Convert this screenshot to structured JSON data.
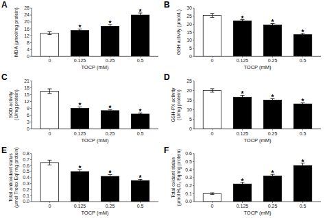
{
  "chart_data": [
    {
      "type": "bar",
      "title": "A",
      "ylabel": "MDA (μmol/mg protein)",
      "xlabel": "TOCP (mM)",
      "categories": [
        "0",
        "0.125",
        "0.25",
        "0.5"
      ],
      "values": [
        13.5,
        15.0,
        17.5,
        24.0
      ],
      "errors": [
        0.8,
        0.9,
        1.0,
        1.2
      ],
      "colors": [
        "white",
        "black",
        "black",
        "black"
      ],
      "annotations": [
        null,
        "*",
        "*",
        "*"
      ],
      "ylim": [
        0,
        28
      ],
      "yticks": [
        0,
        4,
        8,
        12,
        16,
        20,
        24,
        28
      ],
      "grid": false
    },
    {
      "type": "bar",
      "title": "B",
      "ylabel": "GSH activity (μmol/L)",
      "xlabel": "TOCP (mM)",
      "categories": [
        "0",
        "0.125",
        "0.25",
        "0.5"
      ],
      "values": [
        25.5,
        22.0,
        19.5,
        13.5
      ],
      "errors": [
        1.2,
        0.9,
        0.9,
        0.8
      ],
      "colors": [
        "white",
        "black",
        "black",
        "black"
      ],
      "annotations": [
        null,
        "*",
        "*",
        "*"
      ],
      "ylim": [
        0,
        30
      ],
      "yticks": [
        0,
        5,
        10,
        15,
        20,
        25,
        30
      ],
      "grid": false
    },
    {
      "type": "bar",
      "title": "C",
      "ylabel": "SOD activity\n(U/mg protein)",
      "xlabel": "TOCP (mM)",
      "categories": [
        "0",
        "0.125",
        "0.25",
        "0.5"
      ],
      "values": [
        16.5,
        9.0,
        8.0,
        6.5
      ],
      "errors": [
        1.0,
        0.6,
        0.5,
        0.5
      ],
      "colors": [
        "white",
        "black",
        "black",
        "black"
      ],
      "annotations": [
        null,
        "*",
        "*",
        "*"
      ],
      "ylim": [
        0,
        21
      ],
      "yticks": [
        0,
        3,
        6,
        9,
        12,
        15,
        18,
        21
      ],
      "grid": false
    },
    {
      "type": "bar",
      "title": "D",
      "ylabel": "GSH-PX activity\n(U/mg protein)",
      "xlabel": "TOCP (mM)",
      "categories": [
        "0",
        "0.125",
        "0.25",
        "0.5"
      ],
      "values": [
        20.0,
        16.5,
        15.0,
        13.0
      ],
      "errors": [
        0.9,
        1.0,
        0.7,
        0.6
      ],
      "colors": [
        "white",
        "black",
        "black",
        "black"
      ],
      "annotations": [
        null,
        "*",
        "*",
        "*"
      ],
      "ylim": [
        0,
        25
      ],
      "yticks": [
        0,
        5,
        10,
        15,
        20,
        25
      ],
      "grid": false
    },
    {
      "type": "bar",
      "title": "E",
      "ylabel": "Total antioxidant status\n(μmol Trolox Eq/ mg protein)",
      "xlabel": "TOCP (mM)",
      "categories": [
        "0",
        "0.125",
        "0.25",
        "0.5"
      ],
      "values": [
        0.65,
        0.5,
        0.42,
        0.35
      ],
      "errors": [
        0.04,
        0.03,
        0.03,
        0.02
      ],
      "colors": [
        "white",
        "black",
        "black",
        "black"
      ],
      "annotations": [
        null,
        "*",
        "*",
        "*"
      ],
      "ylim": [
        0,
        0.8
      ],
      "yticks": [
        {
          "value": 0,
          "label": "0.0"
        },
        0.1,
        0.2,
        0.3,
        0.4,
        0.5,
        0.6,
        0.7,
        0.8
      ],
      "grid": false
    },
    {
      "type": "bar",
      "title": "F",
      "ylabel": "Total oxidant status\n(μmol H₂O₂ Eq/mg protein)",
      "xlabel": "TOCP (mM)",
      "categories": [
        "0",
        "0.125",
        "0.25",
        "0.5"
      ],
      "values": [
        0.1,
        0.22,
        0.32,
        0.45
      ],
      "errors": [
        0.01,
        0.02,
        0.02,
        0.03
      ],
      "colors": [
        "white",
        "black",
        "black",
        "black"
      ],
      "annotations": [
        null,
        "*",
        "*",
        "*"
      ],
      "ylim": [
        0,
        0.6
      ],
      "yticks": [
        {
          "value": 0,
          "label": "0.0"
        },
        0.1,
        0.2,
        0.3,
        0.4,
        0.5,
        0.6
      ],
      "grid": false
    }
  ]
}
